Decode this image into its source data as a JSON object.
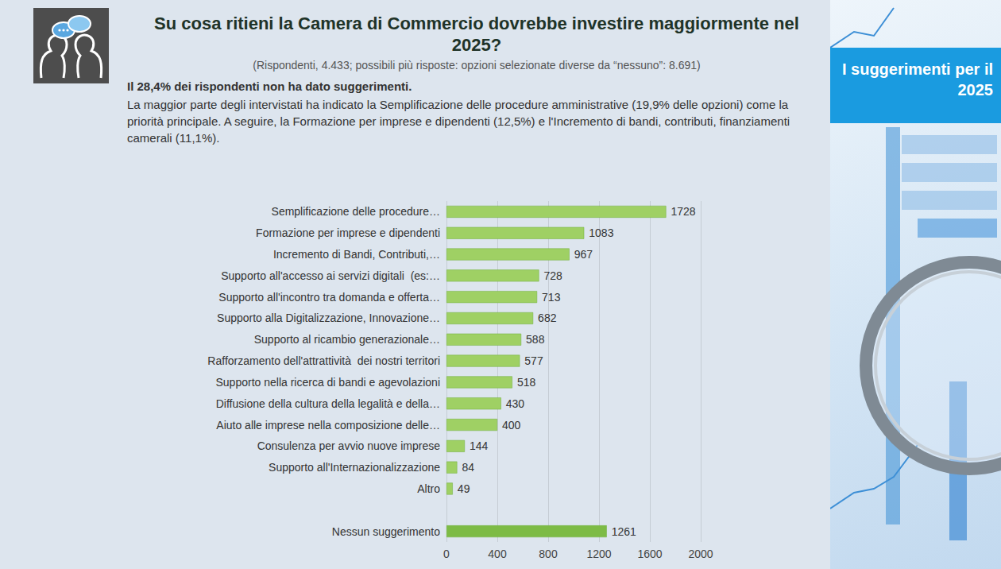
{
  "chart_data": {
    "type": "bar",
    "orientation": "horizontal",
    "title": "Su cosa ritieni la Camera di Commercio dovrebbe investire maggiormente nel 2025?",
    "subtitle": "(Rispondenti, 4.433; possibili più risposte: opzioni selezionate diverse da “nessuno”: 8.691)",
    "annotations": [
      "Il 28,4% dei rispondenti non ha dato suggerimenti.",
      "La maggior parte degli intervistati ha indicato la Semplificazione delle procedure amministrative (19,9% delle opzioni) come la priorità principale. A seguire, la Formazione per imprese e dipendenti (12,5%) e l'Incremento di bandi, contributi, finanziamenti camerali (11,1%).",
      "I suggerimenti per il 2025"
    ],
    "categories": [
      "Semplificazione delle procedure…",
      "Formazione per imprese e dipendenti",
      "Incremento di Bandi, Contributi,…",
      "Supporto all'accesso ai servizi digitali  (es:…",
      "Supporto all'incontro tra domanda e offerta…",
      "Supporto alla Digitalizzazione, Innovazione…",
      "Supporto al ricambio generazionale…",
      "Rafforzamento dell'attrattività  dei nostri territori",
      "Supporto nella ricerca di bandi e agevolazioni",
      "Diffusione della cultura della legalità e della…",
      "Aiuto alle imprese nella composizione delle…",
      "Consulenza per avvio nuove imprese",
      "Supporto all'Internazionalizzazione",
      "Altro",
      null,
      "Nessun suggerimento"
    ],
    "values": [
      1728,
      1083,
      967,
      728,
      713,
      682,
      588,
      577,
      518,
      430,
      400,
      144,
      84,
      49,
      null,
      1261
    ],
    "colors": [
      "#9fd064",
      "#9fd064",
      "#9fd064",
      "#9fd064",
      "#9fd064",
      "#9fd064",
      "#9fd064",
      "#9fd064",
      "#9fd064",
      "#9fd064",
      "#9fd064",
      "#9fd064",
      "#9fd064",
      "#9fd064",
      null,
      "#7dbb45"
    ],
    "xlim": [
      0,
      2000
    ],
    "xticks": [
      0,
      400,
      800,
      1200,
      1600,
      2000
    ],
    "grid": true,
    "data_labels": true
  }
}
